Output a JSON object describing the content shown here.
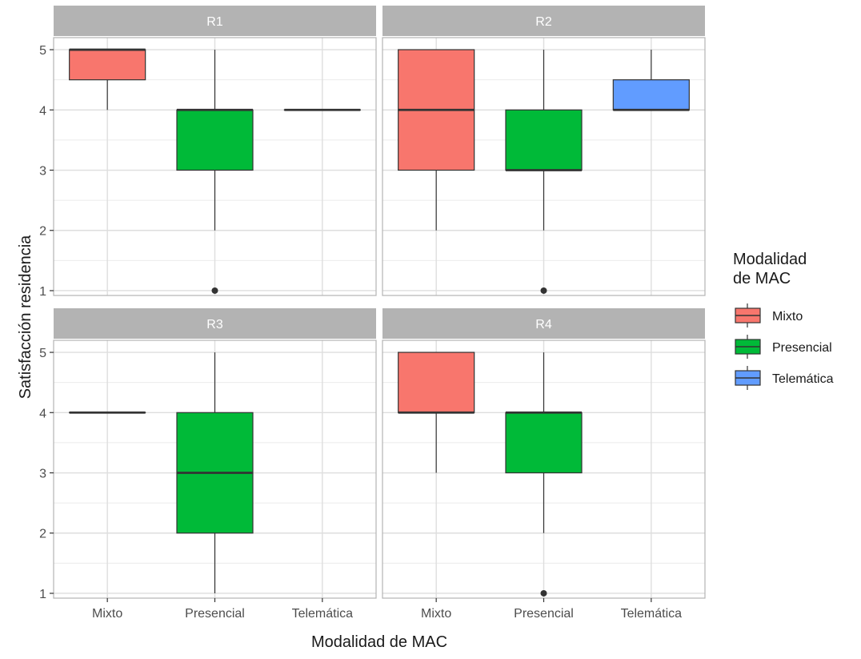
{
  "chart_data": {
    "type": "boxplot",
    "title": "",
    "xlabel": "Modalidad de MAC",
    "ylabel": "Satisfacción residencia",
    "categories": [
      "Mixto",
      "Presencial",
      "Telemática"
    ],
    "yticks": [
      1,
      2,
      3,
      4,
      5
    ],
    "ylim": [
      0.92,
      5.2
    ],
    "grid": true,
    "legend": {
      "title_lines": [
        "Modalidad",
        "de MAC"
      ],
      "placement": "right",
      "entries": [
        {
          "label": "Mixto",
          "color": "#F8766D"
        },
        {
          "label": "Presencial",
          "color": "#00BA38"
        },
        {
          "label": "Telemática",
          "color": "#619CFF"
        }
      ]
    },
    "facets": [
      {
        "label": "R1",
        "boxes": [
          {
            "category": "Mixto",
            "min": 4,
            "q1": 4.5,
            "median": 5,
            "q3": 5,
            "max": 5,
            "outliers": []
          },
          {
            "category": "Presencial",
            "min": 2,
            "q1": 3,
            "median": 4,
            "q3": 4,
            "max": 5,
            "outliers": [
              1
            ]
          },
          {
            "category": "Telemática",
            "min": 4,
            "q1": 4,
            "median": 4,
            "q3": 4,
            "max": 4,
            "outliers": []
          }
        ]
      },
      {
        "label": "R2",
        "boxes": [
          {
            "category": "Mixto",
            "min": 2,
            "q1": 3,
            "median": 4,
            "q3": 5,
            "max": 5,
            "outliers": []
          },
          {
            "category": "Presencial",
            "min": 2,
            "q1": 3,
            "median": 3,
            "q3": 4,
            "max": 5,
            "outliers": [
              1
            ]
          },
          {
            "category": "Telemática",
            "min": 4,
            "q1": 4,
            "median": 4,
            "q3": 4.5,
            "max": 5,
            "outliers": []
          }
        ]
      },
      {
        "label": "R3",
        "boxes": [
          {
            "category": "Mixto",
            "min": 4,
            "q1": 4,
            "median": 4,
            "q3": 4,
            "max": 4,
            "outliers": []
          },
          {
            "category": "Presencial",
            "min": 1,
            "q1": 2,
            "median": 3,
            "q3": 4,
            "max": 5,
            "outliers": []
          }
        ]
      },
      {
        "label": "R4",
        "boxes": [
          {
            "category": "Mixto",
            "min": 3,
            "q1": 4,
            "median": 4,
            "q3": 5,
            "max": 5,
            "outliers": []
          },
          {
            "category": "Presencial",
            "min": 2,
            "q1": 3,
            "median": 4,
            "q3": 4,
            "max": 5,
            "outliers": [
              1
            ]
          }
        ]
      }
    ]
  }
}
